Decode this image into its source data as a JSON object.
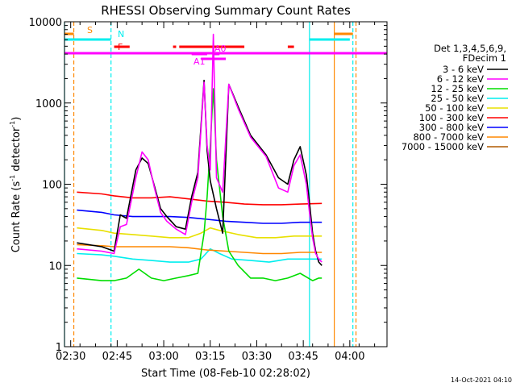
{
  "chart_data": {
    "type": "line",
    "title": "RHESSI Observing Summary Count Rates",
    "xlabel": "Start Time (08-Feb-10 02:28:02)",
    "ylabel": "Count Rate (s⁻¹ detector⁻¹)",
    "ylabel_prefix": "Count Rate (s",
    "ylabel_sup1": "-1",
    "ylabel_mid": " detector",
    "ylabel_sup2": "-1",
    "ylabel_suffix": ")",
    "yscale": "log",
    "ylim": [
      1,
      10000
    ],
    "xlim": [
      "02:28",
      "04:12"
    ],
    "x_ticks": [
      "02:30",
      "02:45",
      "03:00",
      "03:15",
      "03:30",
      "03:45",
      "04:00"
    ],
    "y_ticks": [
      "1",
      "10",
      "100",
      "1000",
      "10000"
    ],
    "footer": "14-Oct-2021 04:10",
    "legend_header": [
      "Det 1,3,4,5,6,9,",
      "FDecim 1"
    ],
    "legend_position": "right",
    "series": [
      {
        "name": "3 - 6 keV",
        "color": "#000000",
        "x": [
          "02:32",
          "02:40",
          "02:44",
          "02:46",
          "02:48",
          "02:51",
          "02:53",
          "02:55",
          "02:57",
          "02:59",
          "03:01",
          "03:04",
          "03:07",
          "03:09",
          "03:11",
          "03:13",
          "03:14",
          "03:15",
          "03:17",
          "03:19",
          "03:21",
          "03:24",
          "03:28",
          "03:33",
          "03:37",
          "03:40",
          "03:42",
          "03:44",
          "03:46",
          "03:47",
          "03:48",
          "03:49",
          "03:50",
          "03:51"
        ],
        "y": [
          19,
          17,
          15,
          42,
          38,
          150,
          210,
          180,
          95,
          50,
          40,
          30,
          28,
          70,
          140,
          1900,
          260,
          110,
          50,
          25,
          1700,
          900,
          400,
          230,
          120,
          100,
          200,
          290,
          130,
          60,
          25,
          15,
          11,
          10
        ]
      },
      {
        "name": "6 - 12 keV",
        "color": "#ff00ff",
        "x": [
          "02:32",
          "02:40",
          "02:44",
          "02:46",
          "02:48",
          "02:51",
          "02:53",
          "02:55",
          "02:57",
          "02:59",
          "03:01",
          "03:04",
          "03:07",
          "03:09",
          "03:11",
          "03:13",
          "03:14",
          "03:15",
          "03:16",
          "03:17",
          "03:19",
          "03:21",
          "03:24",
          "03:28",
          "03:33",
          "03:37",
          "03:40",
          "03:42",
          "03:44",
          "03:46",
          "03:47",
          "03:48",
          "03:49",
          "03:50",
          "03:51"
        ],
        "y": [
          16,
          15,
          14,
          30,
          32,
          120,
          250,
          200,
          90,
          45,
          35,
          28,
          24,
          60,
          120,
          1800,
          300,
          150,
          7000,
          120,
          80,
          1700,
          850,
          380,
          220,
          90,
          80,
          170,
          230,
          100,
          45,
          22,
          14,
          12,
          11
        ]
      },
      {
        "name": "12 - 25 keV",
        "color": "#00dd00",
        "x": [
          "02:32",
          "02:40",
          "02:44",
          "02:48",
          "02:52",
          "02:56",
          "03:00",
          "03:04",
          "03:08",
          "03:11",
          "03:13",
          "03:14",
          "03:15",
          "03:16",
          "03:17",
          "03:19",
          "03:21",
          "03:24",
          "03:28",
          "03:32",
          "03:36",
          "03:40",
          "03:44",
          "03:48",
          "03:50",
          "03:51"
        ],
        "y": [
          7,
          6.5,
          6.5,
          7,
          9,
          7,
          6.5,
          7,
          7.5,
          8,
          25,
          70,
          300,
          1500,
          200,
          40,
          15,
          10,
          7,
          7,
          6.5,
          7,
          8,
          6.5,
          7,
          7
        ]
      },
      {
        "name": "25 - 50 keV",
        "color": "#00eeee",
        "x": [
          "02:32",
          "02:40",
          "02:44",
          "02:50",
          "02:56",
          "03:02",
          "03:08",
          "03:12",
          "03:15",
          "03:18",
          "03:22",
          "03:28",
          "03:34",
          "03:40",
          "03:46",
          "03:51"
        ],
        "y": [
          14,
          13.5,
          13,
          12,
          11.5,
          11,
          11,
          12,
          16,
          14,
          12,
          11.5,
          11,
          12,
          12,
          12
        ]
      },
      {
        "name": "50 - 100 keV",
        "color": "#e8e000",
        "x": [
          "02:32",
          "02:40",
          "02:44",
          "02:50",
          "02:56",
          "03:02",
          "03:08",
          "03:12",
          "03:15",
          "03:18",
          "03:24",
          "03:30",
          "03:36",
          "03:42",
          "03:46",
          "03:51"
        ],
        "y": [
          29,
          27,
          25,
          24,
          23,
          22,
          22,
          25,
          29,
          27,
          24,
          22,
          22,
          23,
          23,
          23
        ]
      },
      {
        "name": "100 - 300 keV",
        "color": "#ff0000",
        "x": [
          "02:32",
          "02:40",
          "02:44",
          "02:50",
          "02:56",
          "03:02",
          "03:08",
          "03:14",
          "03:20",
          "03:26",
          "03:32",
          "03:38",
          "03:44",
          "03:51"
        ],
        "y": [
          80,
          76,
          72,
          68,
          68,
          70,
          66,
          62,
          60,
          57,
          56,
          56,
          57,
          58
        ]
      },
      {
        "name": "300 - 800 keV",
        "color": "#0000ff",
        "x": [
          "02:32",
          "02:40",
          "02:44",
          "02:50",
          "02:56",
          "03:02",
          "03:08",
          "03:14",
          "03:20",
          "03:26",
          "03:32",
          "03:38",
          "03:44",
          "03:51"
        ],
        "y": [
          48,
          45,
          42,
          40,
          40,
          40,
          39,
          37,
          35,
          34,
          33,
          33,
          34,
          34
        ]
      },
      {
        "name": "800 - 7000 keV",
        "color": "#ff8800",
        "x": [
          "02:32",
          "02:40",
          "02:44",
          "02:50",
          "02:56",
          "03:02",
          "03:08",
          "03:14",
          "03:20",
          "03:26",
          "03:32",
          "03:38",
          "03:44",
          "03:51"
        ],
        "y": [
          18,
          17.5,
          17,
          17,
          17,
          17,
          16.5,
          15.5,
          15,
          14.5,
          14,
          14,
          14.5,
          14.5
        ]
      },
      {
        "name": "7000 - 15000 keV",
        "color": "#b05a00",
        "x": [],
        "y": []
      }
    ],
    "flags": [
      {
        "label": "S",
        "color": "#ff8800",
        "segments": [
          [
            "02:28",
            "02:31"
          ],
          [
            "03:55",
            "04:01"
          ]
        ]
      },
      {
        "label": "N",
        "color": "#00eeee",
        "segments": [
          [
            "02:28",
            "02:43"
          ],
          [
            "03:47",
            "04:00"
          ]
        ]
      },
      {
        "label": "F",
        "color": "#ff0000",
        "segments": [
          [
            "02:44",
            "02:49"
          ],
          [
            "03:03",
            "03:04"
          ],
          [
            "03:05",
            "03:26"
          ],
          [
            "03:40",
            "03:42"
          ]
        ]
      },
      {
        "label": "A0",
        "color": "#ff00ff",
        "segments": [
          [
            "03:09",
            "03:14"
          ],
          [
            "03:16",
            "03:18"
          ]
        ]
      },
      {
        "label": "A1",
        "color": "#ff00ff",
        "segments": [
          [
            "03:12",
            "03:20"
          ]
        ]
      }
    ],
    "attenuator_line_color": "#ff00ff",
    "vertical_markers": [
      {
        "x": "02:28",
        "color": "#00eeee",
        "style": "solid"
      },
      {
        "x": "02:31",
        "color": "#ff8800",
        "style": "dashed"
      },
      {
        "x": "02:43",
        "color": "#00eeee",
        "style": "dashed"
      },
      {
        "x": "03:47",
        "color": "#00eeee",
        "style": "solid"
      },
      {
        "x": "03:55",
        "color": "#ff8800",
        "style": "solid"
      },
      {
        "x": "04:01",
        "color": "#00eeee",
        "style": "dashed"
      },
      {
        "x": "04:02",
        "color": "#ff8800",
        "style": "dashed"
      }
    ]
  }
}
